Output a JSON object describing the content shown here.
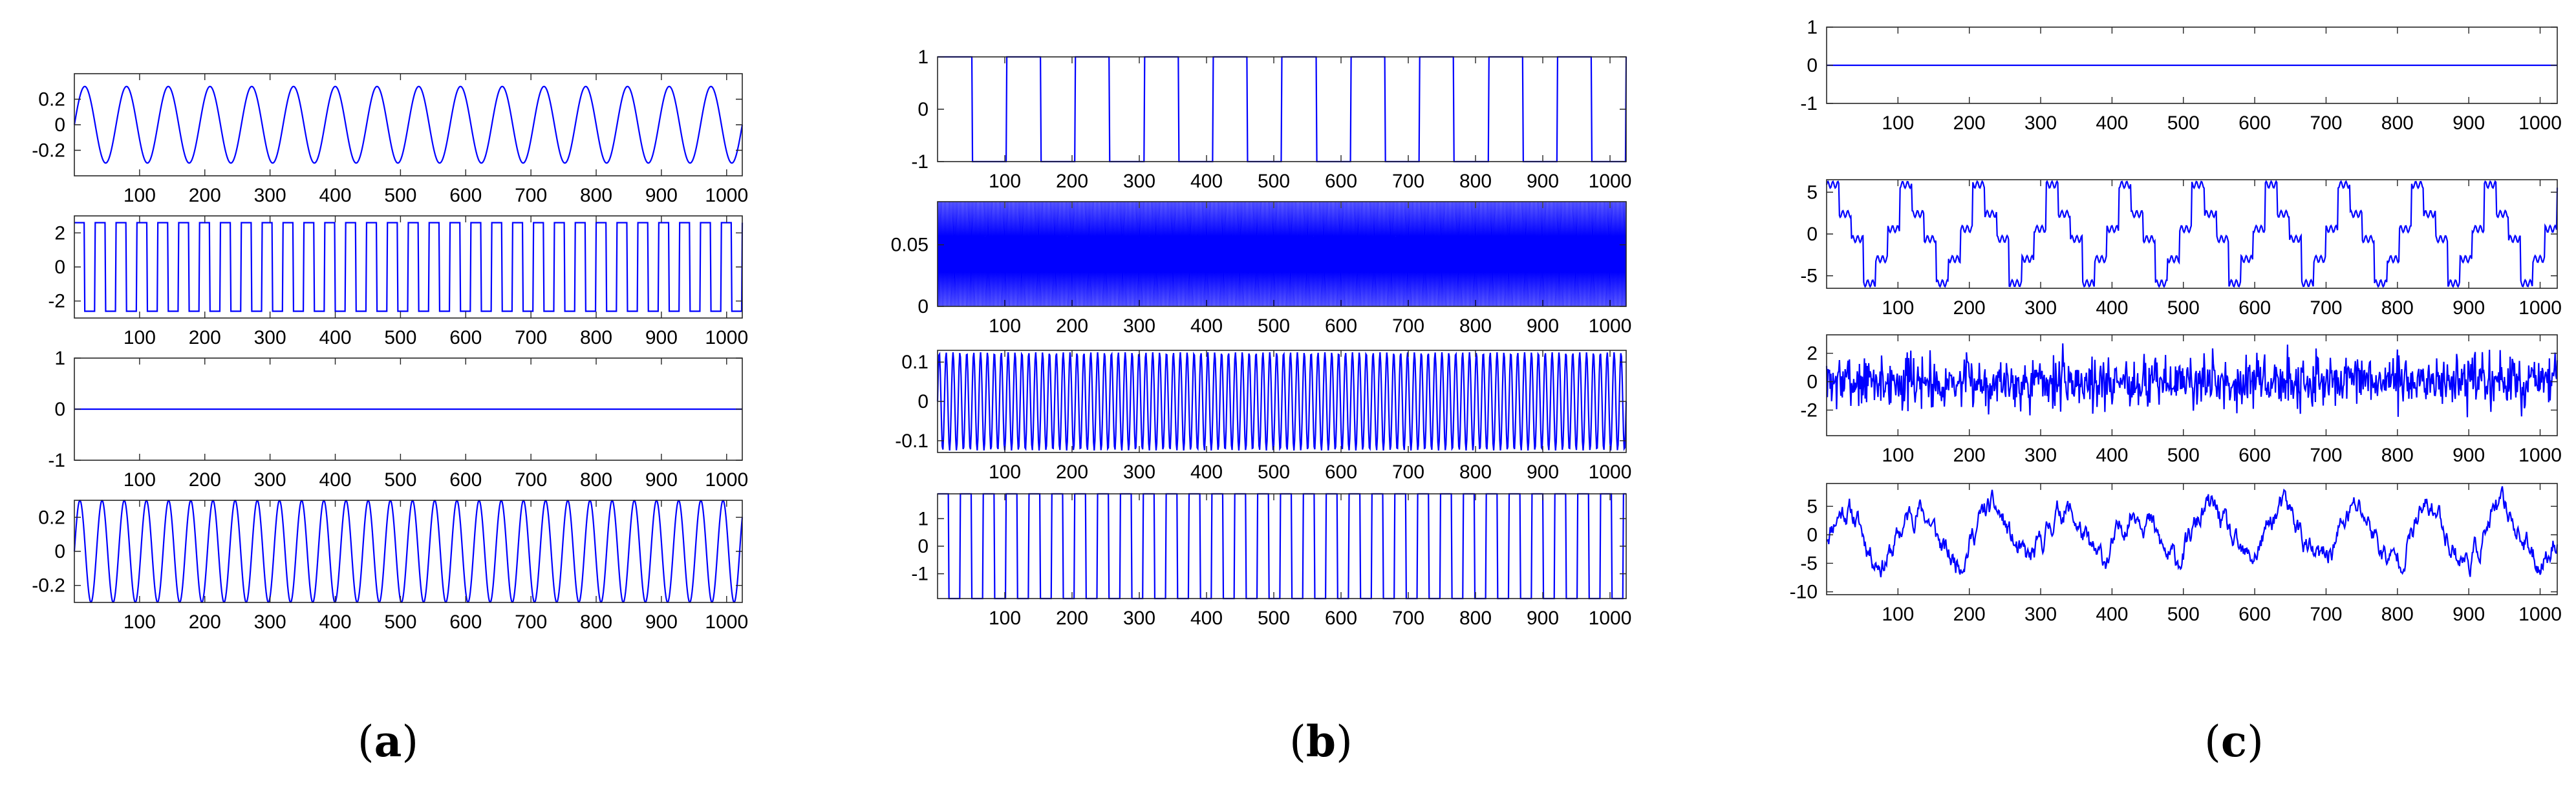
{
  "panels": [
    {
      "label": "a"
    },
    {
      "label": "b"
    },
    {
      "label": "c"
    }
  ],
  "chart_data": [
    {
      "type": "line",
      "panel": "a",
      "name": "",
      "waveform": "sine",
      "amplitude": 0.3,
      "offset": 0,
      "period": 64,
      "xlim": [
        0,
        1024
      ],
      "ylim": [
        -0.4,
        0.4
      ],
      "xticks": [
        100,
        200,
        300,
        400,
        500,
        600,
        700,
        800,
        900,
        1000
      ],
      "xtick_labels": [
        "100",
        "200",
        "300",
        "400",
        "500",
        "600",
        "700",
        "800",
        "900",
        "1000"
      ],
      "yticks": [
        -0.2,
        0,
        0.2
      ],
      "ytick_labels": [
        "-0.2",
        "0",
        "0.2"
      ]
    },
    {
      "type": "line",
      "panel": "a",
      "name": "",
      "waveform": "square",
      "high": 2.6,
      "low": -2.6,
      "period": 32,
      "xlim": [
        0,
        1024
      ],
      "ylim": [
        -3,
        3
      ],
      "xticks": [
        100,
        200,
        300,
        400,
        500,
        600,
        700,
        800,
        900,
        1000
      ],
      "xtick_labels": [
        "100",
        "200",
        "300",
        "400",
        "500",
        "600",
        "700",
        "800",
        "900",
        "1000"
      ],
      "yticks": [
        -2,
        0,
        2
      ],
      "ytick_labels": [
        "-2",
        "0",
        "2"
      ]
    },
    {
      "type": "line",
      "panel": "a",
      "name": "",
      "waveform": "constant",
      "value": 0,
      "xlim": [
        0,
        1024
      ],
      "ylim": [
        -1,
        1
      ],
      "xticks": [
        100,
        200,
        300,
        400,
        500,
        600,
        700,
        800,
        900,
        1000
      ],
      "xtick_labels": [
        "100",
        "200",
        "300",
        "400",
        "500",
        "600",
        "700",
        "800",
        "900",
        "1000"
      ],
      "yticks": [
        -1,
        0,
        1
      ],
      "ytick_labels": [
        "-1",
        "0",
        "1"
      ]
    },
    {
      "type": "line",
      "panel": "a",
      "name": "",
      "waveform": "sine",
      "amplitude": 0.3,
      "offset": 0,
      "period": 34,
      "xlim": [
        0,
        1024
      ],
      "ylim": [
        -0.3,
        0.3
      ],
      "xticks": [
        100,
        200,
        300,
        400,
        500,
        600,
        700,
        800,
        900,
        1000
      ],
      "xtick_labels": [
        "100",
        "200",
        "300",
        "400",
        "500",
        "600",
        "700",
        "800",
        "900",
        "1000"
      ],
      "yticks": [
        -0.2,
        0,
        0.2
      ],
      "ytick_labels": [
        "-0.2",
        "0",
        "0.2"
      ]
    },
    {
      "type": "line",
      "panel": "b",
      "name": "",
      "waveform": "square",
      "high": 1,
      "low": -1,
      "period": 102.4,
      "xlim": [
        0,
        1024
      ],
      "ylim": [
        -1,
        1
      ],
      "xticks": [
        100,
        200,
        300,
        400,
        500,
        600,
        700,
        800,
        900,
        1000
      ],
      "xtick_labels": [
        "100",
        "200",
        "300",
        "400",
        "500",
        "600",
        "700",
        "800",
        "900",
        "1000"
      ],
      "yticks": [
        -1,
        0,
        1
      ],
      "ytick_labels": [
        "-1",
        "0",
        "1"
      ]
    },
    {
      "type": "line",
      "panel": "b",
      "name": "",
      "waveform": "dense",
      "high": 0.085,
      "low": 0,
      "period": 2,
      "xlim": [
        0,
        1024
      ],
      "ylim": [
        0,
        0.085
      ],
      "xticks": [
        100,
        200,
        300,
        400,
        500,
        600,
        700,
        800,
        900,
        1000
      ],
      "xtick_labels": [
        "100",
        "200",
        "300",
        "400",
        "500",
        "600",
        "700",
        "800",
        "900",
        "1000"
      ],
      "yticks": [
        0,
        0.05
      ],
      "ytick_labels": [
        "0",
        "0.05"
      ]
    },
    {
      "type": "line",
      "panel": "b",
      "name": "",
      "waveform": "sine",
      "amplitude": 0.125,
      "offset": 0,
      "period": 10.24,
      "xlim": [
        0,
        1024
      ],
      "ylim": [
        -0.13,
        0.13
      ],
      "xticks": [
        100,
        200,
        300,
        400,
        500,
        600,
        700,
        800,
        900,
        1000
      ],
      "xtick_labels": [
        "100",
        "200",
        "300",
        "400",
        "500",
        "600",
        "700",
        "800",
        "900",
        "1000"
      ],
      "yticks": [
        -0.1,
        0,
        0.1
      ],
      "ytick_labels": [
        "-0.1",
        "0",
        "0.1"
      ]
    },
    {
      "type": "line",
      "panel": "b",
      "name": "",
      "waveform": "square",
      "high": 1.9,
      "low": -1.9,
      "period": 34,
      "xlim": [
        0,
        1024
      ],
      "ylim": [
        -1.9,
        1.9
      ],
      "xticks": [
        100,
        200,
        300,
        400,
        500,
        600,
        700,
        800,
        900,
        1000
      ],
      "xtick_labels": [
        "100",
        "200",
        "300",
        "400",
        "500",
        "600",
        "700",
        "800",
        "900",
        "1000"
      ],
      "yticks": [
        -1,
        0,
        1
      ],
      "ytick_labels": [
        "-1",
        "0",
        "1"
      ]
    },
    {
      "type": "line",
      "panel": "c",
      "name": "",
      "waveform": "constant",
      "value": 0,
      "xlim": [
        0,
        1024
      ],
      "ylim": [
        -1,
        1
      ],
      "xticks": [
        100,
        200,
        300,
        400,
        500,
        600,
        700,
        800,
        900,
        1000
      ],
      "xtick_labels": [
        "100",
        "200",
        "300",
        "400",
        "500",
        "600",
        "700",
        "800",
        "900",
        "1000"
      ],
      "yticks": [
        -1,
        0,
        1
      ],
      "ytick_labels": [
        "-1",
        "0",
        "1"
      ]
    },
    {
      "type": "line",
      "panel": "c",
      "name": "",
      "waveform": "stepped",
      "period": 102.4,
      "xlim": [
        0,
        1024
      ],
      "ylim": [
        -6.5,
        6.5
      ],
      "xticks": [
        100,
        200,
        300,
        400,
        500,
        600,
        700,
        800,
        900,
        1000
      ],
      "xtick_labels": [
        "100",
        "200",
        "300",
        "400",
        "500",
        "600",
        "700",
        "800",
        "900",
        "1000"
      ],
      "yticks": [
        -5,
        0,
        5
      ],
      "ytick_labels": [
        "-5",
        "0",
        "5"
      ]
    },
    {
      "type": "line",
      "panel": "c",
      "name": "",
      "waveform": "noise",
      "amplitude": 1,
      "seed": 7,
      "xlim": [
        0,
        1024
      ],
      "ylim": [
        -3.8,
        3.3
      ],
      "xticks": [
        100,
        200,
        300,
        400,
        500,
        600,
        700,
        800,
        900,
        1000
      ],
      "xtick_labels": [
        "100",
        "200",
        "300",
        "400",
        "500",
        "600",
        "700",
        "800",
        "900",
        "1000"
      ],
      "yticks": [
        -2,
        0,
        2
      ],
      "ytick_labels": [
        "-2",
        "0",
        "2"
      ]
    },
    {
      "type": "line",
      "panel": "c",
      "name": "",
      "waveform": "stepped-noise",
      "period": 102.4,
      "seed": 11,
      "xlim": [
        0,
        1024
      ],
      "ylim": [
        -10.5,
        9
      ],
      "xticks": [
        100,
        200,
        300,
        400,
        500,
        600,
        700,
        800,
        900,
        1000
      ],
      "xtick_labels": [
        "100",
        "200",
        "300",
        "400",
        "500",
        "600",
        "700",
        "800",
        "900",
        "1000"
      ],
      "yticks": [
        -10,
        -5,
        0,
        5
      ],
      "ytick_labels": [
        "-10",
        "-5",
        "0",
        "5"
      ]
    }
  ]
}
